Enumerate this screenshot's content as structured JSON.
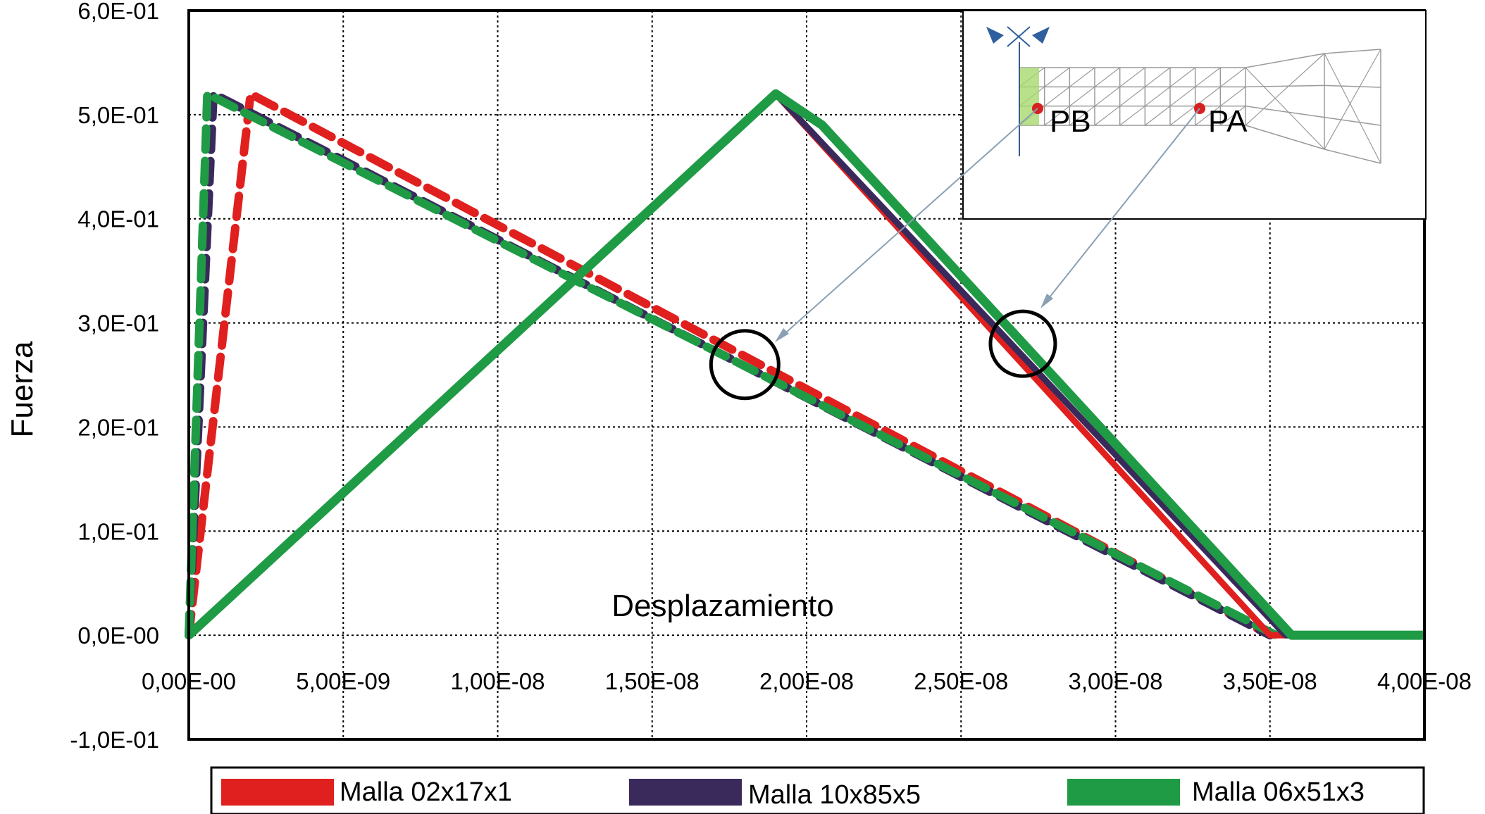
{
  "chart_data": {
    "type": "line",
    "title": "",
    "xlabel": "Desplazamiento",
    "ylabel": "Fuerza",
    "xlim": [
      0,
      4e-08
    ],
    "ylim": [
      -0.1,
      0.6
    ],
    "grid": true,
    "x_ticks": [
      {
        "value": 0,
        "label": "0,00E-00"
      },
      {
        "value": 5e-09,
        "label": "5,00E-09"
      },
      {
        "value": 1e-08,
        "label": "1,00E-08"
      },
      {
        "value": 1.5e-08,
        "label": "1,50E-08"
      },
      {
        "value": 2e-08,
        "label": "2,00E-08"
      },
      {
        "value": 2.5e-08,
        "label": "2,50E-08"
      },
      {
        "value": 3e-08,
        "label": "3,00E-08"
      },
      {
        "value": 3.5e-08,
        "label": "3,50E-08"
      },
      {
        "value": 4e-08,
        "label": "4,00E-08"
      }
    ],
    "y_ticks": [
      {
        "value": 0.6,
        "label": "6,0E-01"
      },
      {
        "value": 0.5,
        "label": "5,0E-01"
      },
      {
        "value": 0.4,
        "label": "4,0E-01"
      },
      {
        "value": 0.3,
        "label": "3,0E-01"
      },
      {
        "value": 0.2,
        "label": "2,0E-01"
      },
      {
        "value": 0.1,
        "label": "1,0E-01"
      },
      {
        "value": 0.0,
        "label": "0,0E-00"
      },
      {
        "value": -0.1,
        "label": "-1,0E-01"
      }
    ],
    "legend": {
      "placement": "bottom",
      "entries": [
        {
          "name": "Malla 02x17x1",
          "color": "#e0201e"
        },
        {
          "name": "Malla 10x85x5",
          "color": "#3a2a5c"
        },
        {
          "name": "Malla 06x51x3",
          "color": "#1f9b45"
        }
      ]
    },
    "series": [
      {
        "name": "Malla 02x17x1",
        "point": "PA",
        "style": "solid",
        "color": "#e0201e",
        "x": [
          0,
          1.9e-08,
          3.5e-08,
          4e-08
        ],
        "y": [
          0,
          0.52,
          0.0,
          0.0
        ]
      },
      {
        "name": "Malla 10x85x5",
        "point": "PA",
        "style": "solid",
        "color": "#3a2a5c",
        "x": [
          0,
          1.9e-08,
          3.55e-08,
          4e-08
        ],
        "y": [
          0,
          0.52,
          0.0,
          0.0
        ]
      },
      {
        "name": "Malla 06x51x3",
        "point": "PA",
        "style": "solid",
        "color": "#1f9b45",
        "x": [
          0,
          1.9e-08,
          2.05e-08,
          3.57e-08,
          4e-08
        ],
        "y": [
          0,
          0.52,
          0.49,
          0.0,
          0.0
        ]
      },
      {
        "name": "Malla 02x17x1",
        "point": "PB",
        "style": "dashed",
        "color": "#e0201e",
        "x": [
          0,
          2e-09,
          3.5e-08
        ],
        "y": [
          0,
          0.52,
          0.0
        ]
      },
      {
        "name": "Malla 10x85x5",
        "point": "PB",
        "style": "dashed",
        "color": "#3a2a5c",
        "x": [
          0,
          8e-10,
          3.5e-08
        ],
        "y": [
          0,
          0.52,
          0.0
        ]
      },
      {
        "name": "Malla 06x51x3",
        "point": "PB",
        "style": "dashed",
        "color": "#1f9b45",
        "x": [
          0,
          6e-10,
          3.52e-08
        ],
        "y": [
          0,
          0.52,
          0.0
        ]
      }
    ],
    "annotations": [
      {
        "label": "PB",
        "x": 1.8e-08,
        "y": 0.26
      },
      {
        "label": "PA",
        "x": 2.7e-08,
        "y": 0.28
      }
    ]
  }
}
